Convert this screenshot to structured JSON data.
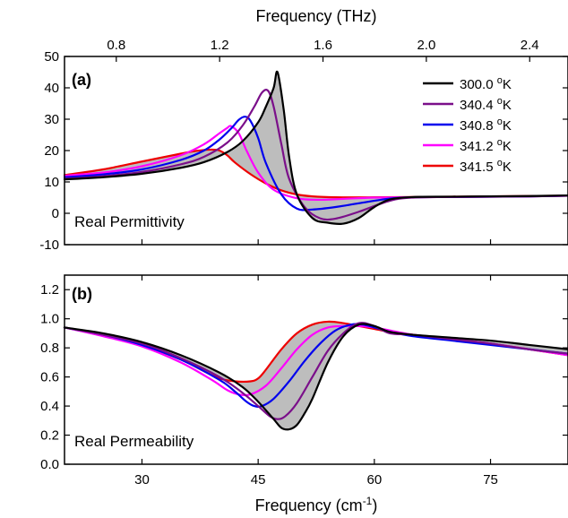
{
  "chart_data": [
    {
      "type": "line",
      "panel_label": "(a)",
      "annotation": "Real Permittivity",
      "top_axis": {
        "label": "Frequency (THz)",
        "ticks": [
          0.8,
          1.2,
          1.6,
          2.0,
          2.4
        ],
        "tick_labels": [
          "0.8",
          "1.2",
          "1.6",
          "2.0",
          "2.4"
        ]
      },
      "xlabel": "",
      "ylabel": "",
      "xlim": [
        20,
        85
      ],
      "ylim": [
        -10,
        50
      ],
      "y_ticks": [
        -10,
        0,
        10,
        20,
        30,
        40,
        50
      ],
      "y_tick_labels": [
        "-10",
        "0",
        "10",
        "20",
        "30",
        "40",
        "50"
      ],
      "legend_position": "top-right",
      "shaded_between": [
        "300.0 °K",
        "341.5 °K"
      ],
      "shade_color": "#bdbdbd",
      "series": [
        {
          "name": "300.0 °K",
          "color": "#000000",
          "x": [
            20,
            25,
            30,
            35,
            38,
            41,
            43,
            45,
            46,
            47,
            47.5,
            48.3,
            49,
            50,
            52,
            54,
            56,
            58,
            60,
            62,
            65,
            70,
            75,
            80,
            85
          ],
          "y": [
            10.8,
            11.5,
            12.6,
            14.5,
            16.3,
            19.5,
            23,
            29,
            34,
            40,
            45,
            33,
            18,
            6,
            -1.5,
            -3,
            -3.3,
            -1.5,
            2,
            4.4,
            5.2,
            5.3,
            5.4,
            5.5,
            5.7
          ]
        },
        {
          "name": "340.4 °K",
          "color": "#7b0f8a",
          "x": [
            20,
            25,
            30,
            35,
            38,
            41,
            43,
            44.5,
            45.5,
            46.3,
            47,
            48,
            49,
            51,
            53,
            55,
            58,
            62,
            65,
            70,
            80,
            85
          ],
          "y": [
            11,
            11.8,
            13.2,
            15.6,
            18,
            22.5,
            28,
            34,
            38.5,
            39,
            34,
            22,
            11,
            2,
            -1.6,
            -1.7,
            0.5,
            4,
            5,
            5.2,
            5.4,
            5.6
          ]
        },
        {
          "name": "340.8 °K",
          "color": "#0000ee",
          "x": [
            20,
            25,
            30,
            35,
            38,
            40,
            41.5,
            42.5,
            43.3,
            44,
            45,
            46,
            48,
            50,
            52,
            55,
            58,
            62,
            65,
            70,
            80,
            85
          ],
          "y": [
            11.5,
            12.4,
            14,
            17,
            20,
            23.5,
            27,
            29.8,
            30.8,
            29.5,
            24,
            16,
            6,
            1.5,
            1.2,
            2,
            3.2,
            4.7,
            5.1,
            5.2,
            5.4,
            5.6
          ]
        },
        {
          "name": "341.2 °K",
          "color": "#ff00ff",
          "x": [
            20,
            25,
            30,
            35,
            38,
            40,
            41,
            41.5,
            42.5,
            43.5,
            45,
            47,
            50,
            53,
            56,
            60,
            65,
            70,
            80,
            85
          ],
          "y": [
            12,
            13,
            15,
            18.5,
            22,
            25.5,
            27.2,
            27.8,
            25.5,
            20,
            13,
            7.5,
            4.8,
            4.3,
            4.6,
            5,
            5.1,
            5.2,
            5.4,
            5.6
          ]
        },
        {
          "name": "341.5 °K",
          "color": "#ee0000",
          "x": [
            20,
            25,
            30,
            35,
            37,
            39,
            40,
            41,
            42,
            44,
            46,
            48,
            50,
            52,
            55,
            60,
            65,
            70,
            80,
            85
          ],
          "y": [
            12.2,
            14,
            16.5,
            19,
            19.9,
            20.3,
            20,
            18.5,
            16.2,
            12.5,
            9.5,
            7.3,
            6,
            5.4,
            5.1,
            5.1,
            5.2,
            5.3,
            5.5,
            5.6
          ]
        }
      ]
    },
    {
      "type": "line",
      "panel_label": "(b)",
      "annotation": "Real Permeability",
      "xlabel": "Frequency (cm⁻¹)",
      "ylabel": "",
      "xlim": [
        20,
        85
      ],
      "ylim": [
        0,
        1.3
      ],
      "x_ticks": [
        30,
        45,
        60,
        75
      ],
      "x_tick_labels": [
        "30",
        "45",
        "60",
        "75"
      ],
      "y_ticks": [
        0.0,
        0.2,
        0.4,
        0.6,
        0.8,
        1.0,
        1.2
      ],
      "y_tick_labels": [
        "0.0",
        "0.2",
        "0.4",
        "0.6",
        "0.8",
        "1.0",
        "1.2"
      ],
      "shaded_between": [
        "300.0 °K",
        "341.5 °K"
      ],
      "shade_color": "#bdbdbd",
      "series": [
        {
          "name": "300.0 °K",
          "color": "#000000",
          "x": [
            20,
            25,
            30,
            35,
            40,
            43,
            45,
            47,
            48,
            49,
            50,
            51,
            52,
            54,
            56,
            58,
            60,
            62,
            65,
            70,
            75,
            80,
            85
          ],
          "y": [
            0.94,
            0.9,
            0.84,
            0.75,
            0.63,
            0.53,
            0.43,
            0.31,
            0.25,
            0.24,
            0.27,
            0.35,
            0.45,
            0.7,
            0.88,
            0.96,
            0.95,
            0.91,
            0.89,
            0.87,
            0.85,
            0.82,
            0.79
          ]
        },
        {
          "name": "340.4 °K",
          "color": "#7b0f8a",
          "x": [
            20,
            25,
            30,
            35,
            40,
            43,
            45,
            46.5,
            47.5,
            48.5,
            50,
            52,
            54,
            56,
            58,
            60,
            62,
            65,
            70,
            75,
            80,
            85
          ],
          "y": [
            0.94,
            0.89,
            0.83,
            0.73,
            0.6,
            0.49,
            0.4,
            0.33,
            0.31,
            0.33,
            0.42,
            0.6,
            0.78,
            0.9,
            0.97,
            0.95,
            0.9,
            0.89,
            0.86,
            0.83,
            0.79,
            0.76
          ]
        },
        {
          "name": "340.8 °K",
          "color": "#0000ee",
          "x": [
            20,
            25,
            30,
            35,
            40,
            42,
            43.5,
            44.5,
            45.5,
            47,
            49,
            51,
            53,
            55,
            57,
            58.5,
            60,
            62,
            65,
            70,
            75,
            80,
            85
          ],
          "y": [
            0.94,
            0.89,
            0.82,
            0.72,
            0.58,
            0.5,
            0.43,
            0.4,
            0.4,
            0.45,
            0.57,
            0.71,
            0.83,
            0.92,
            0.96,
            0.96,
            0.94,
            0.91,
            0.88,
            0.85,
            0.82,
            0.79,
            0.76
          ]
        },
        {
          "name": "341.2 °K",
          "color": "#ff00ff",
          "x": [
            20,
            25,
            30,
            35,
            39,
            41,
            42.5,
            44,
            46,
            48,
            50,
            52,
            54,
            56,
            58,
            60,
            62,
            65,
            70,
            75,
            80,
            85
          ],
          "y": [
            0.94,
            0.88,
            0.81,
            0.7,
            0.58,
            0.51,
            0.48,
            0.48,
            0.54,
            0.66,
            0.79,
            0.89,
            0.94,
            0.95,
            0.95,
            0.94,
            0.92,
            0.89,
            0.86,
            0.83,
            0.79,
            0.75
          ]
        },
        {
          "name": "341.5 °K",
          "color": "#ee0000",
          "x": [
            20,
            25,
            30,
            35,
            38,
            40,
            42,
            44,
            45,
            46,
            48,
            50,
            52,
            54,
            56,
            58,
            60,
            62,
            65,
            70,
            75,
            80,
            85
          ],
          "y": [
            0.94,
            0.89,
            0.82,
            0.72,
            0.64,
            0.59,
            0.57,
            0.57,
            0.59,
            0.65,
            0.79,
            0.9,
            0.96,
            0.98,
            0.97,
            0.95,
            0.93,
            0.91,
            0.89,
            0.86,
            0.83,
            0.79,
            0.75
          ]
        }
      ]
    }
  ]
}
